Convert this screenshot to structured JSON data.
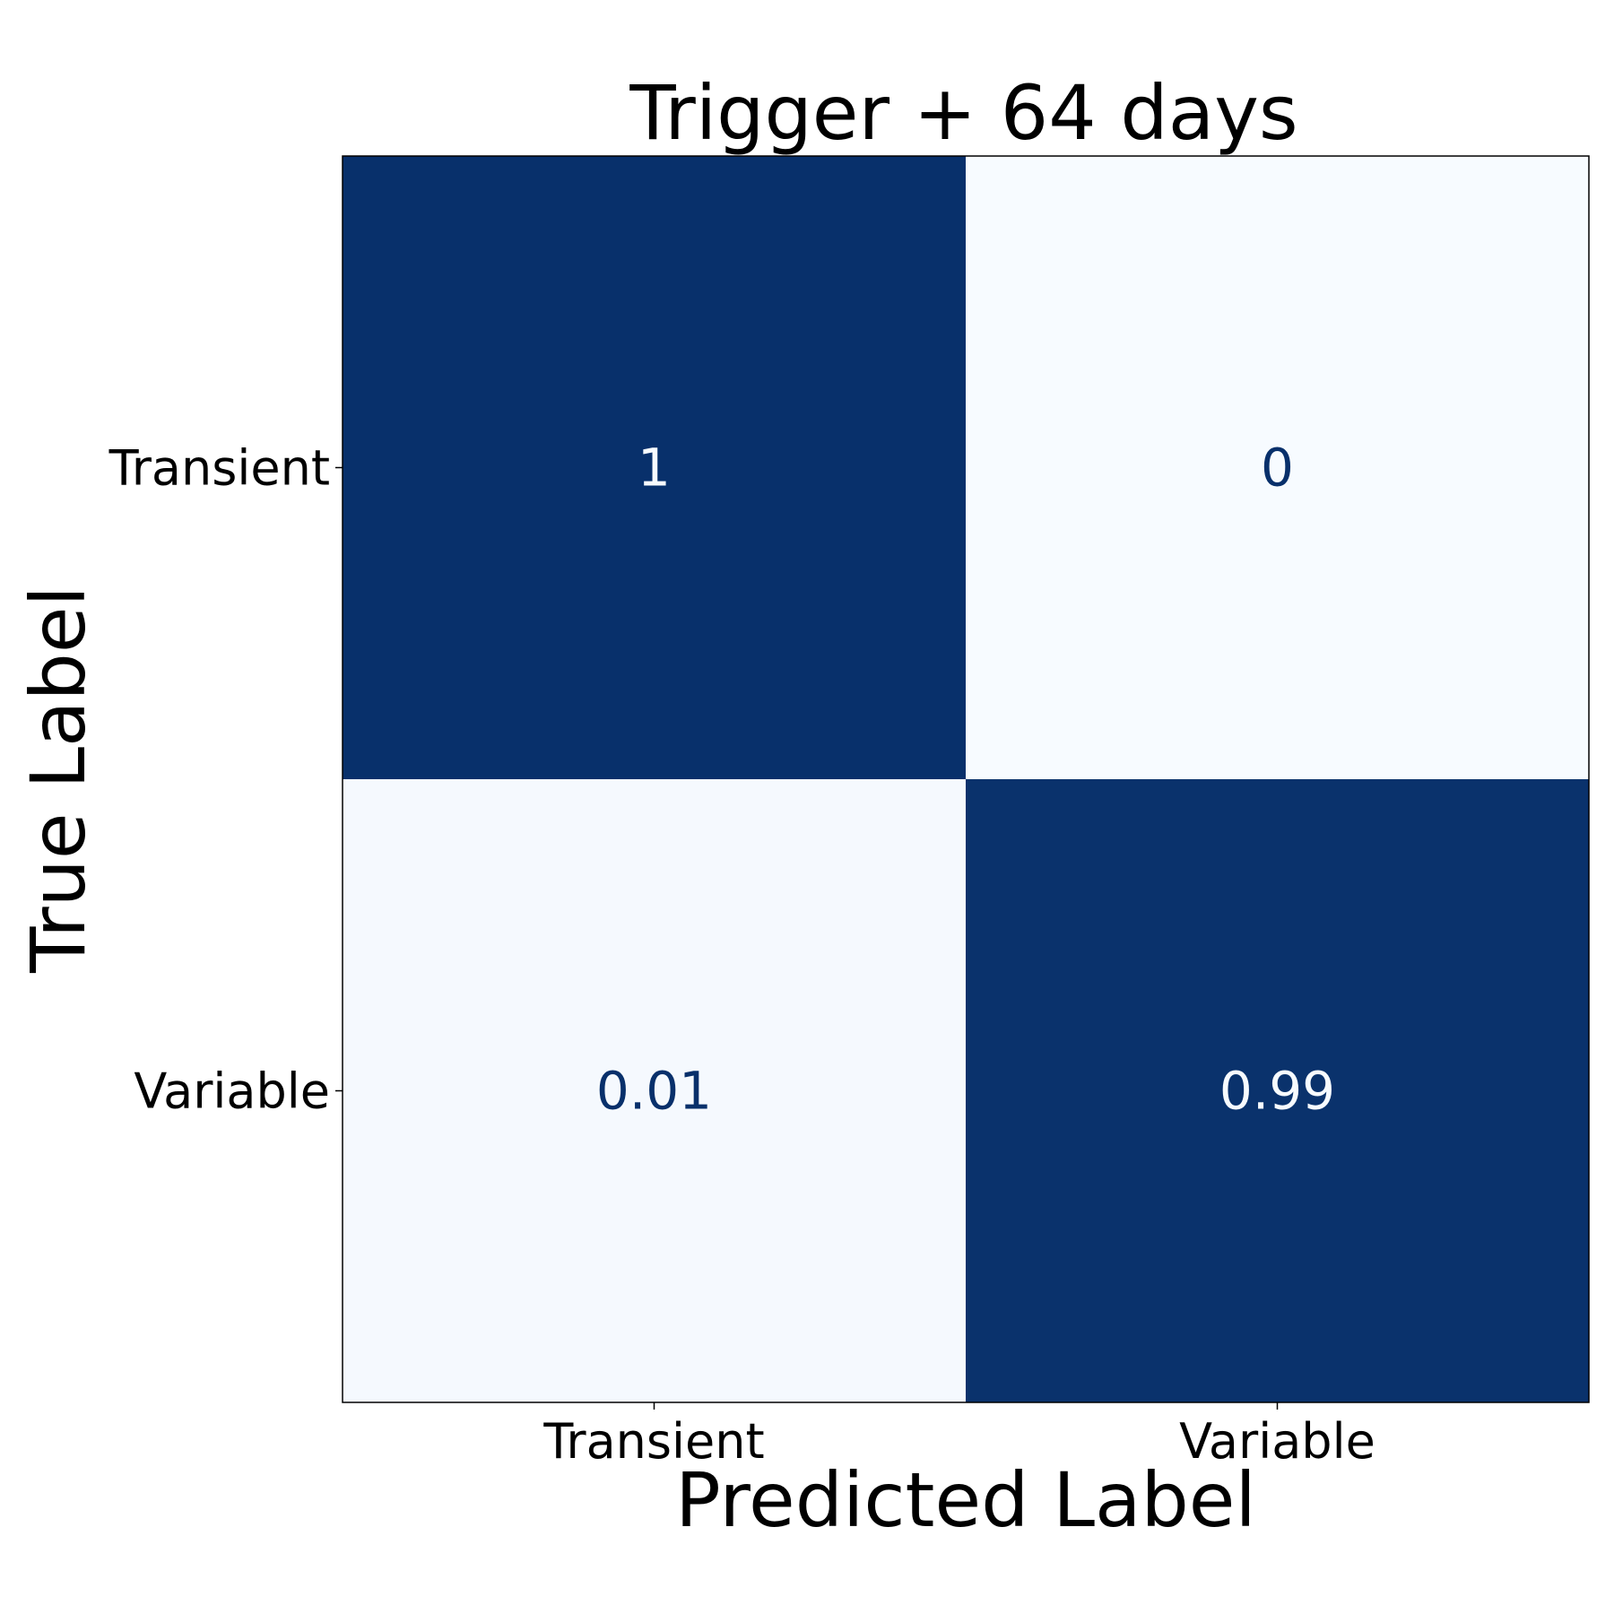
{
  "chart_data": {
    "type": "heatmap",
    "title": "Trigger + 64 days",
    "xlabel": "Predicted Label",
    "ylabel": "True Label",
    "x_categories": [
      "Transient",
      "Variable"
    ],
    "y_categories": [
      "Transient",
      "Variable"
    ],
    "values": [
      [
        1,
        0
      ],
      [
        0.01,
        0.99
      ]
    ],
    "cell_labels": [
      [
        "1",
        "0"
      ],
      [
        "0.01",
        "0.99"
      ]
    ],
    "color_range": [
      0,
      1
    ],
    "colormap": {
      "low": "#f7fbff",
      "high": "#08306b"
    },
    "grid": false,
    "legend": "none"
  }
}
